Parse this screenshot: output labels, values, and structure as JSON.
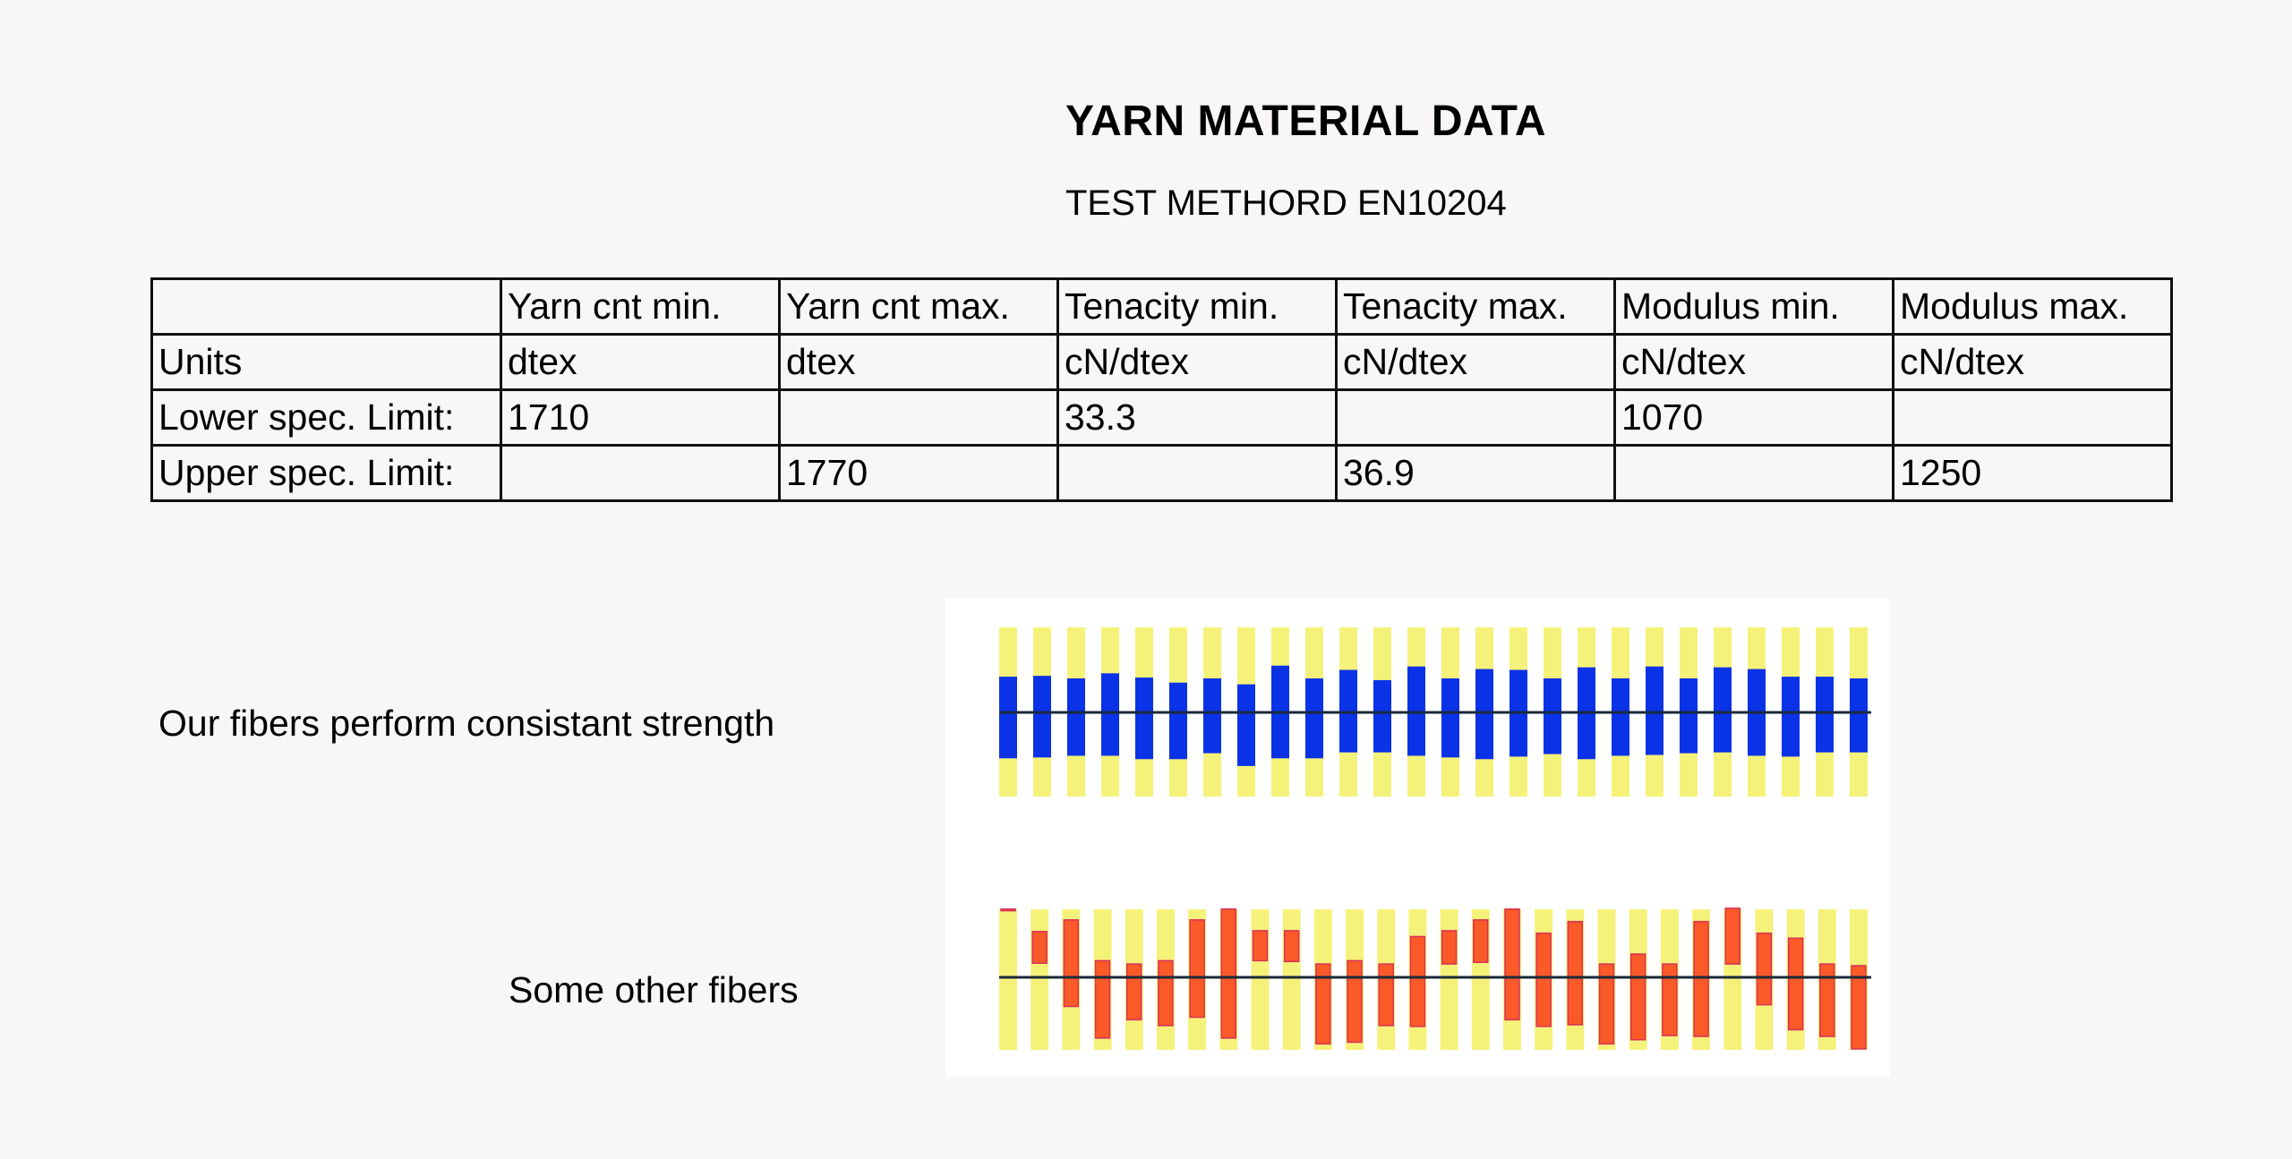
{
  "header": {
    "title": "YARN MATERIAL DATA",
    "subtitle": "TEST METHORD EN10204"
  },
  "table": {
    "columns": [
      "",
      "Yarn cnt min.",
      "Yarn cnt max.",
      "Tenacity min.",
      "Tenacity max.",
      "Modulus min.",
      "Modulus max."
    ],
    "rows": [
      [
        "Units",
        "dtex",
        "dtex",
        "cN/dtex",
        "cN/dtex",
        "cN/dtex",
        "cN/dtex"
      ],
      [
        "Lower spec. Limit:",
        "1710",
        "",
        "33.3",
        "",
        "1070",
        ""
      ],
      [
        "Upper spec. Limit:",
        "",
        "1770",
        "",
        "36.9",
        "",
        "1250"
      ]
    ]
  },
  "labels": {
    "ours": "Our fibers perform consistant strength",
    "other": "Some other fibers"
  },
  "colors": {
    "band": "#f5f27a",
    "ours_bar": "#0a32e6",
    "other_bar": "#fa5a28",
    "other_bar_edge": "#d8305a",
    "reference_line": "#1a2a3a"
  },
  "chart_data": [
    {
      "type": "bar",
      "series": [
        {
          "values": [
            [
              -0.54,
              0.42
            ],
            [
              -0.53,
              0.43
            ],
            [
              -0.51,
              0.4
            ],
            [
              -0.51,
              0.46
            ],
            [
              -0.55,
              0.41
            ],
            [
              -0.55,
              0.35
            ],
            [
              -0.48,
              0.4
            ],
            [
              -0.63,
              0.33
            ],
            [
              -0.54,
              0.55
            ],
            [
              -0.54,
              0.4
            ],
            [
              -0.47,
              0.5
            ],
            [
              -0.47,
              0.38
            ],
            [
              -0.51,
              0.54
            ],
            [
              -0.53,
              0.4
            ],
            [
              -0.55,
              0.51
            ],
            [
              -0.52,
              0.5
            ],
            [
              -0.49,
              0.4
            ],
            [
              -0.55,
              0.53
            ],
            [
              -0.51,
              0.4
            ],
            [
              -0.5,
              0.54
            ],
            [
              -0.48,
              0.4
            ],
            [
              -0.47,
              0.53
            ],
            [
              -0.51,
              0.51
            ],
            [
              -0.52,
              0.42
            ],
            [
              -0.47,
              0.42
            ],
            [
              -0.47,
              0.4
            ]
          ]
        }
      ]
    },
    {
      "type": "bar",
      "series": [
        {
          "values": [
            [
              0.8,
              0.82
            ],
            [
              0.17,
              0.55
            ],
            [
              -0.35,
              0.69
            ],
            [
              -0.73,
              0.2
            ],
            [
              -0.51,
              0.16
            ],
            [
              -0.58,
              0.2
            ],
            [
              -0.48,
              0.69
            ],
            [
              -0.73,
              0.82
            ],
            [
              0.2,
              0.56
            ],
            [
              0.19,
              0.56
            ],
            [
              -0.8,
              0.16
            ],
            [
              -0.78,
              0.2
            ],
            [
              -0.58,
              0.16
            ],
            [
              -0.59,
              0.49
            ],
            [
              0.16,
              0.56
            ],
            [
              0.18,
              0.69
            ],
            [
              -0.51,
              0.82
            ],
            [
              -0.59,
              0.53
            ],
            [
              -0.57,
              0.67
            ],
            [
              -0.8,
              0.16
            ],
            [
              -0.75,
              0.28
            ],
            [
              -0.7,
              0.16
            ],
            [
              -0.71,
              0.67
            ],
            [
              0.16,
              0.83
            ],
            [
              -0.33,
              0.53
            ],
            [
              -0.63,
              0.47
            ],
            [
              -0.71,
              0.16
            ],
            [
              -0.86,
              0.14
            ]
          ]
        }
      ]
    }
  ]
}
